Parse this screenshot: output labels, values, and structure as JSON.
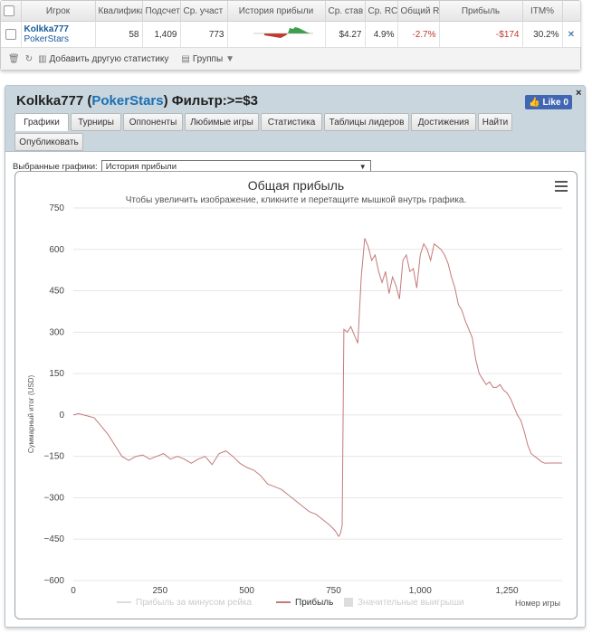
{
  "stats_table": {
    "headers": [
      "Игрок",
      "Квалифика",
      "Подсчет",
      "Ср. участ",
      "История прибыли",
      "Ср. став",
      "Ср. RC",
      "Общий R",
      "Прибыль",
      "ITM%"
    ],
    "row": {
      "player": "Kolkka777",
      "site": "PokerStars",
      "qualify": "58",
      "count": "1,409",
      "avg_entrants": "773",
      "avg_stake": "$4.27",
      "avg_roi": "4.9%",
      "total_roi": "-2.7%",
      "profit": "-$174",
      "itm": "30.2%"
    },
    "toolbar": {
      "add_stat": "Добавить другую статистику",
      "groups": "Группы"
    }
  },
  "panel": {
    "player": "Kolkka777",
    "site": "PokerStars",
    "filter": "Фильтр:>=$3",
    "like_label": "Like 0",
    "close_label": "×",
    "tabs": [
      "Графики",
      "Турниры",
      "Оппоненты",
      "Любимые игры",
      "Статистика",
      "Таблицы лидеров",
      "Достижения",
      "Найти",
      "Опубликовать"
    ],
    "graph_select_label": "Выбранные графики:",
    "graph_select_value": "История прибыли"
  },
  "chart_data": {
    "type": "line",
    "title": "Общая прибыль",
    "subtitle": "Чтобы увеличить изображение, кликните и перетащите мышкой внутрь графика.",
    "xlabel": "Номер игры",
    "ylabel": "Суммарный итог (USD)",
    "xlim": [
      0,
      1409
    ],
    "ylim": [
      -600,
      750
    ],
    "x_ticks": [
      "0",
      "250",
      "500",
      "750",
      "1,000",
      "1,250"
    ],
    "y_ticks": [
      "750",
      "600",
      "450",
      "300",
      "150",
      "0",
      "−150",
      "−300",
      "−450",
      "−600"
    ],
    "grid": true,
    "legend_position": "bottom",
    "legend": [
      "Прибыль за минусом рейка",
      "Прибыль",
      "Значительные выигрыши"
    ],
    "series": [
      {
        "name": "Прибыль",
        "color": "#c47a7a",
        "x": [
          0,
          15,
          30,
          45,
          60,
          80,
          100,
          120,
          140,
          160,
          180,
          200,
          220,
          240,
          260,
          280,
          300,
          320,
          340,
          360,
          380,
          400,
          420,
          440,
          460,
          480,
          500,
          520,
          540,
          560,
          580,
          600,
          620,
          640,
          660,
          680,
          700,
          720,
          740,
          755,
          765,
          770,
          775,
          780,
          790,
          800,
          810,
          820,
          830,
          840,
          850,
          860,
          870,
          880,
          890,
          900,
          910,
          920,
          930,
          940,
          950,
          960,
          970,
          980,
          990,
          1000,
          1010,
          1020,
          1030,
          1040,
          1050,
          1060,
          1070,
          1080,
          1090,
          1100,
          1110,
          1120,
          1130,
          1140,
          1150,
          1160,
          1170,
          1180,
          1190,
          1200,
          1210,
          1220,
          1230,
          1240,
          1250,
          1260,
          1270,
          1280,
          1290,
          1300,
          1310,
          1320,
          1330,
          1340,
          1350,
          1360,
          1370,
          1380,
          1390,
          1400,
          1409
        ],
        "y": [
          0,
          5,
          0,
          -5,
          -10,
          -40,
          -70,
          -110,
          -150,
          -165,
          -150,
          -145,
          -160,
          -150,
          -140,
          -160,
          -150,
          -160,
          -175,
          -160,
          -150,
          -180,
          -140,
          -130,
          -150,
          -175,
          -190,
          -200,
          -220,
          -250,
          -260,
          -270,
          -290,
          -310,
          -330,
          -350,
          -360,
          -380,
          -400,
          -420,
          -440,
          -430,
          -400,
          310,
          300,
          320,
          290,
          260,
          500,
          640,
          610,
          560,
          580,
          520,
          480,
          520,
          440,
          500,
          470,
          420,
          560,
          580,
          520,
          530,
          460,
          580,
          620,
          600,
          560,
          620,
          610,
          600,
          580,
          550,
          500,
          460,
          400,
          380,
          340,
          310,
          280,
          200,
          150,
          130,
          110,
          120,
          100,
          100,
          110,
          90,
          80,
          60,
          30,
          0,
          -20,
          -60,
          -110,
          -140,
          -150,
          -160,
          -170,
          -175,
          -174,
          -174,
          -174,
          -174,
          -174
        ]
      }
    ]
  }
}
